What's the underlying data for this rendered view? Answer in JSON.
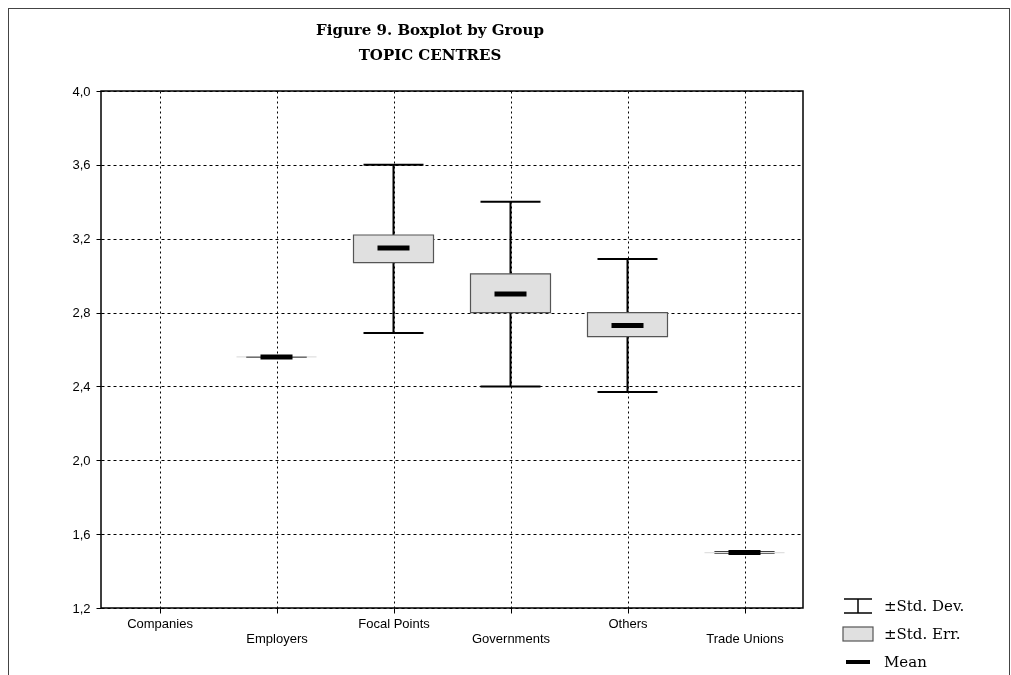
{
  "chart_data": {
    "type": "box",
    "title": "Figure 9. Boxplot by Group",
    "subtitle": "TOPIC CENTRES",
    "categories": [
      "Companies",
      "Employers",
      "Focal Points",
      "Governments",
      "Others",
      "Trade Unions"
    ],
    "boxes": [
      null,
      {
        "low": 2.56,
        "q1": 2.56,
        "median": 2.56,
        "q3": 2.56,
        "high": 2.56
      },
      {
        "low": 2.69,
        "q1": 3.07,
        "median": 3.15,
        "q3": 3.22,
        "high": 3.6
      },
      {
        "low": 2.4,
        "q1": 2.8,
        "median": 2.9,
        "q3": 3.01,
        "high": 3.4
      },
      {
        "low": 2.37,
        "q1": 2.67,
        "median": 2.73,
        "q3": 2.8,
        "high": 3.09
      },
      {
        "low": 1.5,
        "q1": 1.5,
        "median": 1.5,
        "q3": 1.5,
        "high": 1.5
      }
    ],
    "color": "#e0e0e0",
    "ylim": [
      1.2,
      4.0
    ],
    "yticks": [
      {
        "value": 1.2,
        "label": "1,2"
      },
      {
        "value": 1.6,
        "label": "1,6"
      },
      {
        "value": 2.0,
        "label": "2,0"
      },
      {
        "value": 2.4,
        "label": "2,4"
      },
      {
        "value": 2.8,
        "label": "2,8"
      },
      {
        "value": 3.2,
        "label": "3,2"
      },
      {
        "value": 3.6,
        "label": "3,6"
      },
      {
        "value": 4.0,
        "label": "4,0"
      }
    ],
    "grid": true,
    "annotations": [
      "±Std. Dev.",
      "±Std. Err.",
      "Mean"
    ]
  }
}
